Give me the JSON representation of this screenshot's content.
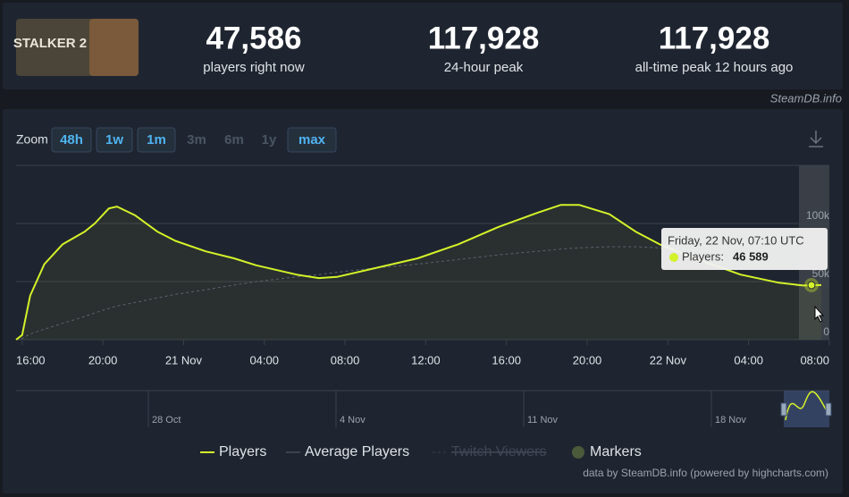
{
  "header": {
    "logo_text": "STALKER 2",
    "stats": [
      {
        "value": "47,586",
        "label": "players right now"
      },
      {
        "value": "117,928",
        "label": "24-hour peak"
      },
      {
        "value": "117,928",
        "label": "all-time peak 12 hours ago"
      }
    ],
    "site": "SteamDB.info"
  },
  "zoom": {
    "label": "Zoom",
    "buttons": [
      {
        "label": "48h",
        "enabled": true
      },
      {
        "label": "1w",
        "enabled": true
      },
      {
        "label": "1m",
        "enabled": true
      },
      {
        "label": "3m",
        "enabled": false
      },
      {
        "label": "6m",
        "enabled": false
      },
      {
        "label": "1y",
        "enabled": false
      },
      {
        "label": "max",
        "enabled": true
      }
    ]
  },
  "chart_data": {
    "type": "line",
    "x": [
      15.7,
      16.0,
      16.4,
      17.1,
      18.0,
      19.1,
      19.6,
      20.3,
      20.7,
      21.6,
      22.7,
      23.6,
      25.1,
      26.5,
      27.6,
      29.6,
      30.7,
      31.6,
      33.1,
      35.6,
      37.6,
      39.6,
      41.5,
      42.7,
      43.6,
      45.1,
      46.4,
      47.6,
      49.5,
      51.6,
      53.5,
      54.7,
      55.6
    ],
    "series": [
      {
        "name": "Players",
        "color": "#d4f229",
        "values": [
          0,
          4000,
          38000,
          65000,
          82000,
          93000,
          100000,
          113000,
          114500,
          107000,
          93000,
          85000,
          76000,
          70000,
          64000,
          56000,
          53000,
          54000,
          60000,
          70000,
          82000,
          97000,
          109000,
          116000,
          116000,
          108000,
          93000,
          82000,
          69000,
          56000,
          49000,
          46600,
          47000
        ]
      },
      {
        "name": "Average Players",
        "color": "#5b6370",
        "values": [
          0,
          1000,
          5000,
          9000,
          14000,
          20000,
          23000,
          27000,
          29000,
          32000,
          36000,
          39000,
          43000,
          47000,
          50000,
          54000,
          56000,
          58000,
          61000,
          65000,
          69000,
          73000,
          76000,
          78000,
          79000,
          80000,
          80000,
          79000,
          77000,
          73000,
          70000,
          69000,
          68000
        ]
      }
    ],
    "xlim": [
      15.7,
      56.0
    ],
    "xticks": [
      {
        "value": 16,
        "label": "16:00"
      },
      {
        "value": 20,
        "label": "20:00"
      },
      {
        "value": 24,
        "label": "21 Nov"
      },
      {
        "value": 28,
        "label": "04:00"
      },
      {
        "value": 32,
        "label": "08:00"
      },
      {
        "value": 36,
        "label": "12:00"
      },
      {
        "value": 40,
        "label": "16:00"
      },
      {
        "value": 44,
        "label": "20:00"
      },
      {
        "value": 48,
        "label": "22 Nov"
      },
      {
        "value": 52,
        "label": "04:00"
      },
      {
        "value": 56,
        "label": "08:00"
      }
    ],
    "ylim": [
      0,
      150000
    ],
    "yticks": [
      0,
      {
        "value": 50000,
        "label": "50k"
      },
      {
        "value": 100000,
        "label": "100k"
      }
    ],
    "grid": true,
    "tooltip": {
      "title": "Friday, 22 Nov, 07:10 UTC",
      "label": "Players:",
      "value": "46 589"
    },
    "legend_extra": [
      {
        "name": "Twitch Viewers",
        "hidden": true
      },
      {
        "name": "Markers"
      }
    ],
    "navigator_labels": [
      "28 Oct",
      "4 Nov",
      "11 Nov",
      "18 Nov"
    ],
    "credits": "data by SteamDB.info (powered by highcharts.com)"
  }
}
